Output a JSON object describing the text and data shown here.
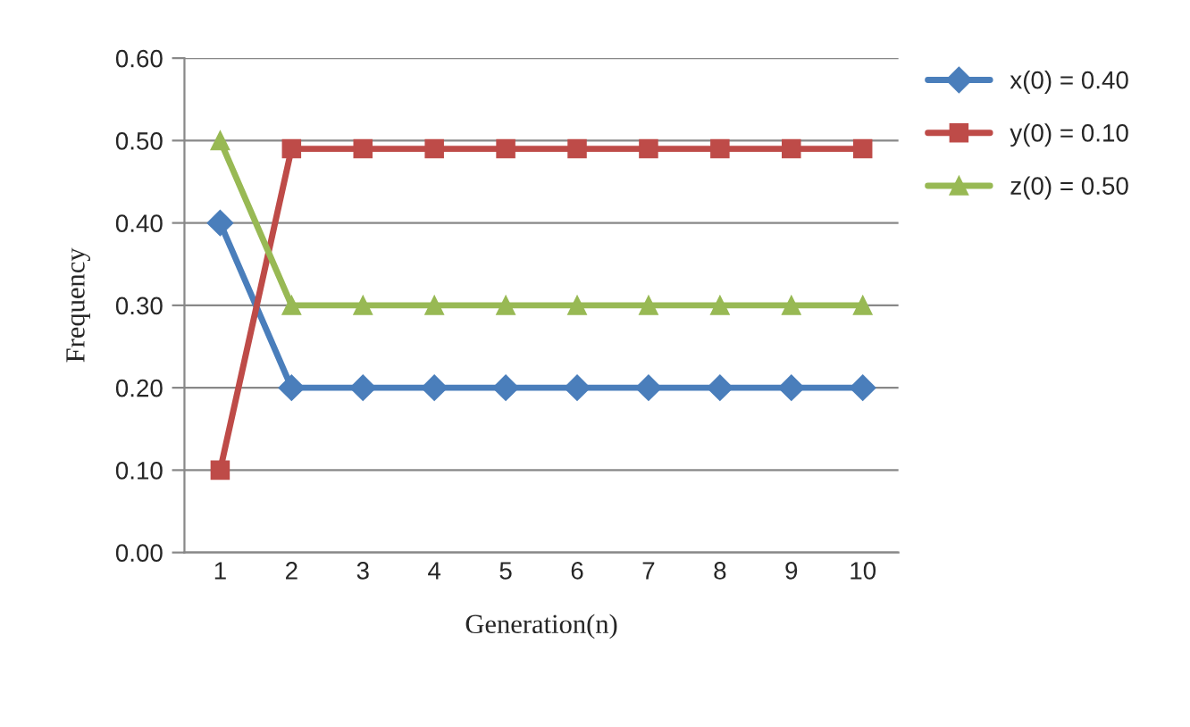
{
  "chart_data": {
    "type": "line",
    "xlabel": "Generation(n)",
    "ylabel": "Frequency",
    "categories": [
      "1",
      "2",
      "3",
      "4",
      "5",
      "6",
      "7",
      "8",
      "9",
      "10"
    ],
    "series": [
      {
        "name": "x(0) = 0.40",
        "color": "#4a7ebb",
        "marker": "diamond",
        "values": [
          0.4,
          0.2,
          0.2,
          0.2,
          0.2,
          0.2,
          0.2,
          0.2,
          0.2,
          0.2
        ]
      },
      {
        "name": "y(0) = 0.10",
        "color": "#be4b48",
        "marker": "square",
        "values": [
          0.1,
          0.49,
          0.49,
          0.49,
          0.49,
          0.49,
          0.49,
          0.49,
          0.49,
          0.49
        ]
      },
      {
        "name": "z(0) = 0.50",
        "color": "#98b954",
        "marker": "triangle",
        "values": [
          0.5,
          0.3,
          0.3,
          0.3,
          0.3,
          0.3,
          0.3,
          0.3,
          0.3,
          0.3
        ]
      }
    ],
    "ylim": [
      0,
      0.6
    ],
    "yticks": [
      {
        "value": 0,
        "label": "0.00"
      },
      {
        "value": 0.1,
        "label": "0.10"
      },
      {
        "value": 0.2,
        "label": "0.20"
      },
      {
        "value": 0.3,
        "label": "0.30"
      },
      {
        "value": 0.4,
        "label": "0.40"
      },
      {
        "value": 0.5,
        "label": "0.50"
      },
      {
        "value": 0.6,
        "label": "0.60"
      }
    ],
    "grid": "y",
    "legend": "top right"
  }
}
